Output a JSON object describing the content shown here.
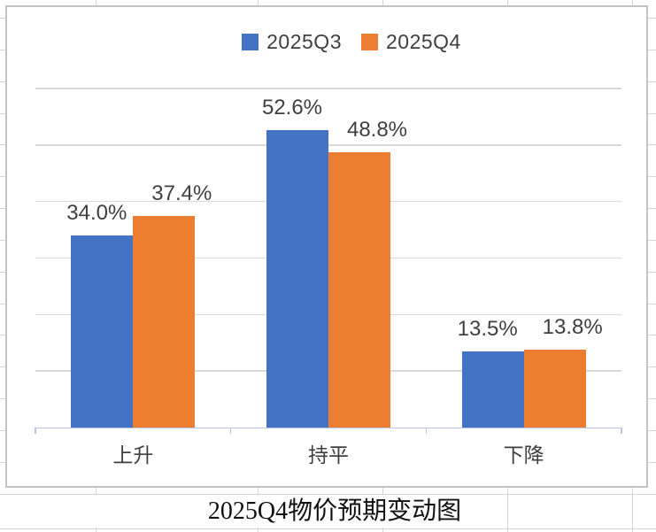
{
  "chart_data": {
    "type": "bar",
    "title": "2025Q4物价预期变动图",
    "categories": [
      "上升",
      "持平",
      "下降"
    ],
    "series": [
      {
        "name": "2025Q3",
        "color": "#4472C4",
        "values": [
          34.0,
          52.6,
          13.5
        ],
        "labels": [
          "34.0%",
          "52.6%",
          "13.5%"
        ]
      },
      {
        "name": "2025Q4",
        "color": "#ED7D31",
        "values": [
          37.4,
          48.8,
          13.8
        ],
        "labels": [
          "37.4%",
          "48.8%",
          "13.8%"
        ]
      }
    ],
    "ylim": [
      0,
      60
    ],
    "grid_step": 10,
    "grid": true,
    "legend_position": "top",
    "xlabel": "",
    "ylabel": ""
  },
  "colors": {
    "plot_gridline": "#D9D9D9",
    "axis_line": "#B7C6E4",
    "chart_border": "#C2C2C2",
    "sheet_gridline": "#D5D5D5",
    "data_label": "#404040",
    "category_label": "#3F3F3F"
  }
}
